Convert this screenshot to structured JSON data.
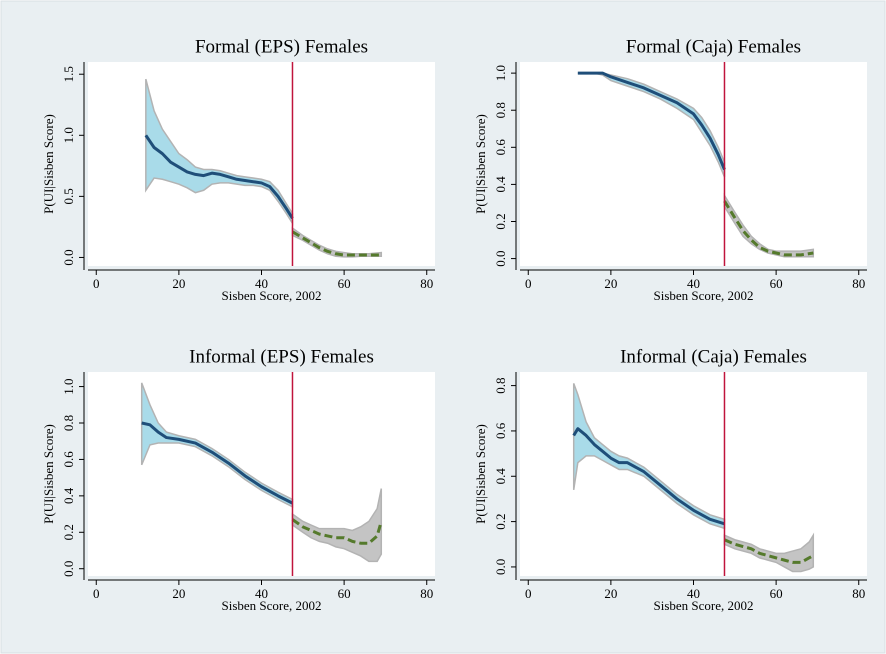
{
  "chart_data": [
    {
      "type": "rdplot",
      "title": "Formal (EPS) Females",
      "x_label": "Sisben Score, 2002",
      "y_label": "P(UI|Sisben Score)",
      "xlim": [
        -2,
        82
      ],
      "xticks": [
        0,
        20,
        40,
        60,
        80
      ],
      "ylim": [
        -0.07,
        1.6
      ],
      "yticks": [
        {
          "value": 0,
          "label": "0.0"
        },
        0.5,
        {
          "value": 1,
          "label": "1.0"
        },
        1.5
      ],
      "cutoff": 47.5,
      "cutoff_color": "#c0143c",
      "series": [
        {
          "color": "#1f4e79",
          "band_color": "#a9dbe9",
          "dashed": false,
          "x": [
            12,
            14,
            16,
            18,
            20,
            22,
            24,
            26,
            28,
            30,
            32,
            34,
            36,
            38,
            40,
            42,
            44,
            46,
            47.5
          ],
          "values": [
            1.0,
            0.9,
            0.85,
            0.78,
            0.74,
            0.7,
            0.68,
            0.67,
            0.69,
            0.68,
            0.66,
            0.64,
            0.63,
            0.62,
            0.61,
            0.58,
            0.5,
            0.4,
            0.32
          ],
          "upper": [
            1.46,
            1.2,
            1.05,
            0.95,
            0.85,
            0.8,
            0.74,
            0.72,
            0.72,
            0.71,
            0.69,
            0.67,
            0.66,
            0.65,
            0.64,
            0.62,
            0.55,
            0.44,
            0.36
          ],
          "lower": [
            0.55,
            0.65,
            0.64,
            0.62,
            0.6,
            0.57,
            0.53,
            0.55,
            0.6,
            0.61,
            0.61,
            0.6,
            0.59,
            0.59,
            0.58,
            0.55,
            0.46,
            0.36,
            0.28
          ]
        },
        {
          "color": "#557a2c",
          "band_color": "#c4c4c4",
          "dashed": true,
          "x": [
            47.5,
            50,
            52,
            54,
            56,
            58,
            60,
            62,
            64,
            66,
            69
          ],
          "values": [
            0.21,
            0.16,
            0.12,
            0.08,
            0.05,
            0.03,
            0.02,
            0.02,
            0.02,
            0.02,
            0.02
          ],
          "upper": [
            0.24,
            0.18,
            0.14,
            0.1,
            0.07,
            0.05,
            0.04,
            0.03,
            0.03,
            0.03,
            0.04
          ],
          "lower": [
            0.18,
            0.14,
            0.1,
            0.06,
            0.03,
            0.01,
            0.005,
            0.005,
            0.01,
            0.01,
            0.01
          ]
        }
      ]
    },
    {
      "type": "rdplot",
      "title": "Formal (Caja) Females",
      "x_label": "Sisben Score, 2002",
      "y_label": "P(UI|Sisben Score)",
      "xlim": [
        -2,
        82
      ],
      "xticks": [
        0,
        20,
        40,
        60,
        80
      ],
      "ylim": [
        -0.04,
        1.06
      ],
      "yticks": [
        {
          "value": 0,
          "label": "0.0"
        },
        0.2,
        0.4,
        0.6,
        0.8,
        {
          "value": 1,
          "label": "1.0"
        }
      ],
      "cutoff": 47.5,
      "cutoff_color": "#c0143c",
      "series": [
        {
          "color": "#1f4e79",
          "band_color": "#a9dbe9",
          "dashed": false,
          "x": [
            12,
            16,
            18,
            20,
            24,
            28,
            32,
            36,
            40,
            42,
            44,
            46,
            47.5
          ],
          "values": [
            1,
            1,
            1,
            0.98,
            0.95,
            0.92,
            0.88,
            0.84,
            0.78,
            0.72,
            0.65,
            0.56,
            0.48
          ],
          "upper": [
            1,
            1,
            1,
            0.99,
            0.97,
            0.94,
            0.9,
            0.86,
            0.81,
            0.76,
            0.69,
            0.6,
            0.52
          ],
          "lower": [
            1,
            1,
            0.99,
            0.96,
            0.93,
            0.9,
            0.86,
            0.81,
            0.75,
            0.68,
            0.61,
            0.52,
            0.44
          ]
        },
        {
          "color": "#557a2c",
          "band_color": "#c4c4c4",
          "dashed": true,
          "x": [
            47.5,
            50,
            52,
            54,
            56,
            58,
            60,
            62,
            64,
            66,
            69
          ],
          "values": [
            0.31,
            0.22,
            0.15,
            0.1,
            0.06,
            0.04,
            0.03,
            0.02,
            0.02,
            0.02,
            0.03
          ],
          "upper": [
            0.34,
            0.25,
            0.18,
            0.12,
            0.08,
            0.05,
            0.04,
            0.04,
            0.04,
            0.04,
            0.05
          ],
          "lower": [
            0.28,
            0.19,
            0.12,
            0.08,
            0.05,
            0.03,
            0.02,
            0.01,
            0.01,
            0.01,
            0.01
          ]
        }
      ]
    },
    {
      "type": "rdplot",
      "title": "Informal (EPS) Females",
      "x_label": "Sisben Score, 2002",
      "y_label": "P(UI|Sisben Score)",
      "xlim": [
        -2,
        82
      ],
      "xticks": [
        0,
        20,
        40,
        60,
        80
      ],
      "ylim": [
        -0.04,
        1.08
      ],
      "yticks": [
        {
          "value": 0,
          "label": "0.0"
        },
        0.2,
        0.4,
        0.6,
        0.8,
        {
          "value": 1,
          "label": "1.0"
        }
      ],
      "cutoff": 47.5,
      "cutoff_color": "#c0143c",
      "series": [
        {
          "color": "#1f4e79",
          "band_color": "#a9dbe9",
          "dashed": false,
          "x": [
            11,
            13,
            15,
            17,
            20,
            24,
            28,
            32,
            36,
            40,
            44,
            47.5
          ],
          "values": [
            0.8,
            0.79,
            0.75,
            0.72,
            0.71,
            0.69,
            0.64,
            0.58,
            0.51,
            0.45,
            0.4,
            0.36
          ],
          "upper": [
            1.02,
            0.9,
            0.8,
            0.75,
            0.73,
            0.71,
            0.66,
            0.6,
            0.53,
            0.47,
            0.42,
            0.38
          ],
          "lower": [
            0.57,
            0.68,
            0.69,
            0.69,
            0.69,
            0.67,
            0.62,
            0.56,
            0.49,
            0.43,
            0.38,
            0.34
          ]
        },
        {
          "color": "#557a2c",
          "band_color": "#c4c4c4",
          "dashed": true,
          "x": [
            47.5,
            50,
            52,
            54,
            56,
            58,
            60,
            62,
            64,
            66,
            68,
            69
          ],
          "values": [
            0.27,
            0.23,
            0.21,
            0.19,
            0.18,
            0.17,
            0.17,
            0.15,
            0.14,
            0.14,
            0.18,
            0.26
          ],
          "upper": [
            0.3,
            0.26,
            0.24,
            0.22,
            0.22,
            0.22,
            0.22,
            0.21,
            0.23,
            0.26,
            0.33,
            0.44
          ],
          "lower": [
            0.24,
            0.2,
            0.17,
            0.15,
            0.14,
            0.12,
            0.11,
            0.09,
            0.07,
            0.04,
            0.04,
            0.08
          ]
        }
      ]
    },
    {
      "type": "rdplot",
      "title": "Informal (Caja) Females",
      "x_label": "Sisben Score, 2002",
      "y_label": "P(UI|Sisben Score)",
      "xlim": [
        -2,
        82
      ],
      "xticks": [
        0,
        20,
        40,
        60,
        80
      ],
      "ylim": [
        -0.04,
        0.86
      ],
      "yticks": [
        {
          "value": 0,
          "label": "0.0"
        },
        0.2,
        0.4,
        0.6,
        0.8
      ],
      "cutoff": 47.5,
      "cutoff_color": "#c0143c",
      "series": [
        {
          "color": "#1f4e79",
          "band_color": "#a9dbe9",
          "dashed": false,
          "x": [
            11,
            12,
            14,
            16,
            18,
            20,
            22,
            24,
            28,
            32,
            36,
            40,
            44,
            47.5
          ],
          "values": [
            0.58,
            0.61,
            0.58,
            0.54,
            0.51,
            0.48,
            0.46,
            0.46,
            0.42,
            0.36,
            0.3,
            0.25,
            0.21,
            0.19
          ],
          "upper": [
            0.81,
            0.76,
            0.64,
            0.57,
            0.54,
            0.51,
            0.49,
            0.48,
            0.44,
            0.38,
            0.32,
            0.27,
            0.23,
            0.21
          ],
          "lower": [
            0.34,
            0.46,
            0.49,
            0.49,
            0.47,
            0.45,
            0.43,
            0.43,
            0.4,
            0.34,
            0.28,
            0.23,
            0.19,
            0.17
          ]
        },
        {
          "color": "#557a2c",
          "band_color": "#c4c4c4",
          "dashed": true,
          "x": [
            47.5,
            50,
            52,
            54,
            56,
            58,
            60,
            62,
            64,
            66,
            68,
            69
          ],
          "values": [
            0.12,
            0.1,
            0.09,
            0.08,
            0.06,
            0.05,
            0.04,
            0.03,
            0.02,
            0.02,
            0.04,
            0.05
          ],
          "upper": [
            0.14,
            0.12,
            0.11,
            0.1,
            0.08,
            0.07,
            0.06,
            0.06,
            0.07,
            0.08,
            0.11,
            0.14
          ],
          "lower": [
            0.1,
            0.08,
            0.07,
            0.06,
            0.04,
            0.03,
            0.02,
            0.0,
            -0.02,
            -0.02,
            -0.01,
            0.0
          ]
        }
      ]
    }
  ]
}
